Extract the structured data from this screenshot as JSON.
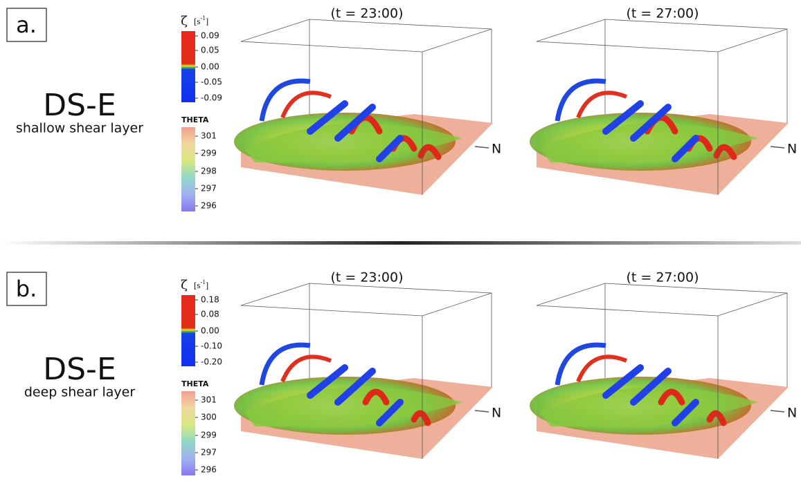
{
  "panels": [
    {
      "label": "a.",
      "title": "DS-E",
      "subtitle": "shallow shear layer",
      "vorticity": {
        "symbol": "ζ",
        "unit_open": "[s",
        "unit_exponent": "-1",
        "unit_close": "]",
        "ticks": [
          "0.09",
          "0.05",
          "0.00",
          "-0.05",
          "-0.09"
        ]
      },
      "theta": {
        "title": "THETA",
        "ticks": [
          "301",
          "299",
          "298",
          "297",
          "296"
        ]
      },
      "views": [
        {
          "time": "(t = 23:00)",
          "north": "N"
        },
        {
          "time": "(t = 27:00)",
          "north": "N"
        }
      ]
    },
    {
      "label": "b.",
      "title": "DS-E",
      "subtitle": "deep shear layer",
      "vorticity": {
        "symbol": "ζ",
        "unit_open": "[s",
        "unit_exponent": "-1",
        "unit_close": "]",
        "ticks": [
          "0.18",
          "0.08",
          "0.00",
          "-0.10",
          "-0.20"
        ]
      },
      "theta": {
        "title": "THETA",
        "ticks": [
          "301",
          "300",
          "299",
          "297",
          "296"
        ]
      },
      "views": [
        {
          "time": "(t = 23:00)",
          "north": "N"
        },
        {
          "time": "(t = 27:00)",
          "north": "N"
        }
      ]
    }
  ]
}
